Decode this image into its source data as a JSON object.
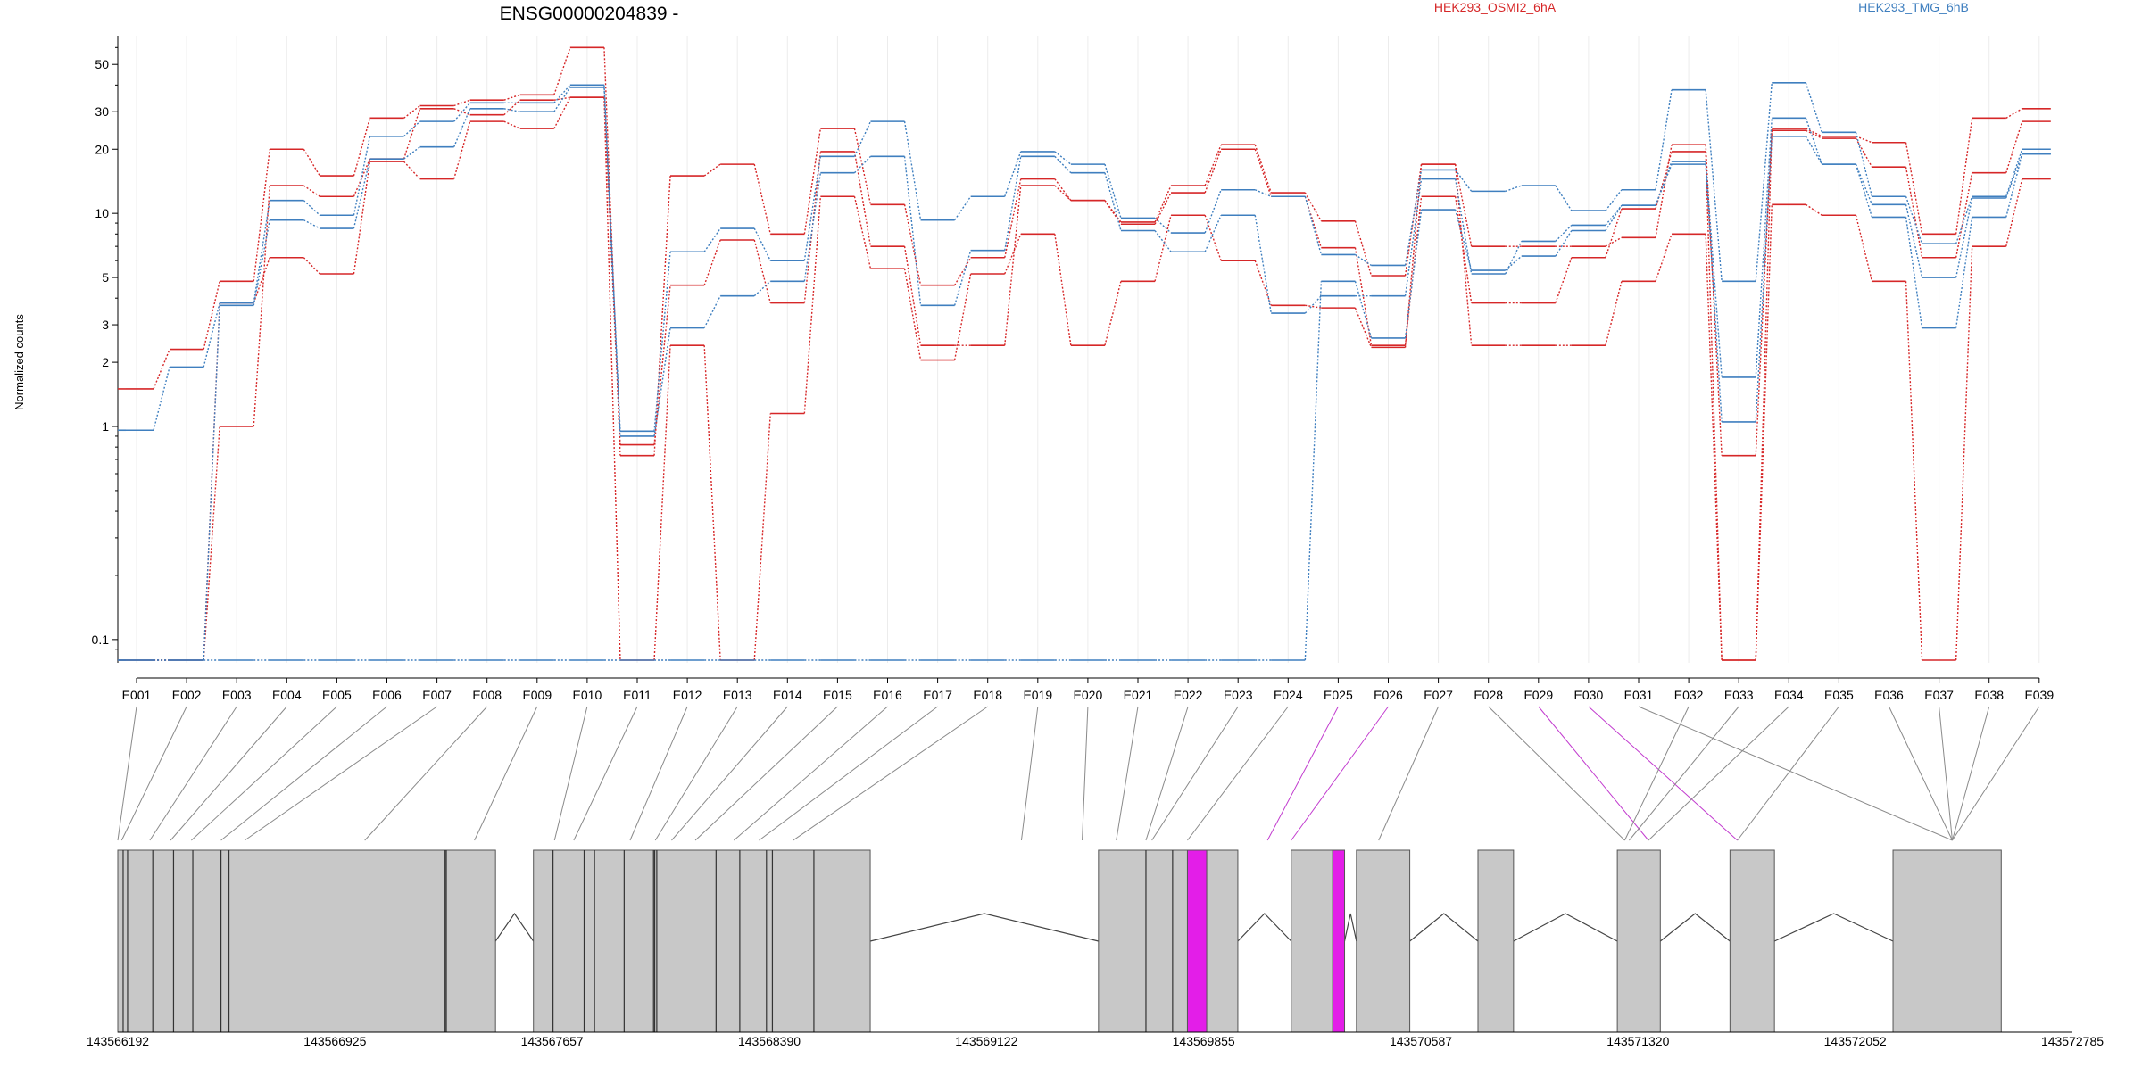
{
  "chart_data": {
    "type": "line",
    "title": "ENSG00000204839 -",
    "ylabel": "Normalized counts",
    "yscale": "log",
    "ylim": [
      0.08,
      65
    ],
    "yticks": [
      0.1,
      1,
      2,
      3,
      5,
      10,
      20,
      30,
      50
    ],
    "ytick_labels": [
      "0.1",
      "1",
      "2",
      "3",
      "5",
      "10",
      "20",
      "30",
      "50"
    ],
    "categories": [
      "E001",
      "E002",
      "E003",
      "E004",
      "E005",
      "E006",
      "E007",
      "E008",
      "E009",
      "E010",
      "E011",
      "E012",
      "E013",
      "E014",
      "E015",
      "E016",
      "E017",
      "E018",
      "E019",
      "E020",
      "E021",
      "E022",
      "E023",
      "E024",
      "E025",
      "E026",
      "E027",
      "E028",
      "E029",
      "E030",
      "E031",
      "E032",
      "E033",
      "E034",
      "E035",
      "E036",
      "E037",
      "E038",
      "E039"
    ],
    "grid": "vertical",
    "legend": [
      {
        "label": "HEK293_OSMI2_6hA",
        "color": "#d62728"
      },
      {
        "label": "HEK293_TMG_6hB",
        "color": "#3f7fbf"
      }
    ],
    "series": [
      {
        "group": "red",
        "values": [
          1.5,
          2.3,
          4.8,
          20,
          15,
          28,
          32,
          34,
          36,
          60,
          0.73,
          15,
          17,
          8,
          25,
          11,
          4.6,
          6.2,
          14.5,
          11.5,
          9.1,
          13.5,
          21,
          12.5,
          9.2,
          5.1,
          17,
          7,
          7,
          7,
          7.7,
          21,
          0.73,
          25,
          23,
          21.5,
          8,
          28,
          31
        ]
      },
      {
        "group": "red",
        "values": [
          0.08,
          0.08,
          1.0,
          13.5,
          12,
          18,
          31,
          29,
          34,
          35,
          0.82,
          4.6,
          7.5,
          3.8,
          19.5,
          7,
          2.4,
          2.4,
          13.5,
          11.5,
          8.9,
          12.5,
          20,
          12,
          6.9,
          2.4,
          12,
          3.8,
          3.8,
          6.2,
          10.5,
          19.5,
          0.08,
          24.5,
          22.5,
          16.5,
          6.2,
          15.5,
          27
        ]
      },
      {
        "group": "red",
        "values": [
          0.08,
          0.08,
          3.8,
          6.2,
          5.2,
          17.5,
          14.5,
          27,
          25,
          35,
          0.08,
          2.4,
          0.08,
          1.15,
          12,
          5.5,
          2.05,
          5.2,
          8,
          2.4,
          4.8,
          9.8,
          6,
          3.7,
          3.6,
          2.35,
          17,
          2.4,
          2.4,
          2.4,
          4.8,
          8,
          0.08,
          11,
          9.8,
          4.8,
          0.08,
          7,
          14.5
        ]
      },
      {
        "group": "blue",
        "values": [
          0.96,
          1.9,
          3.8,
          11.5,
          9.8,
          23,
          27,
          33,
          33,
          40,
          0.95,
          6.6,
          8.5,
          6,
          18.5,
          27,
          9.3,
          12,
          19.5,
          17,
          9.5,
          8.1,
          12.9,
          12,
          6.4,
          5.7,
          16,
          12.7,
          13.5,
          10.3,
          12.9,
          38,
          4.8,
          41,
          24,
          12,
          7.2,
          12,
          20
        ]
      },
      {
        "group": "blue",
        "values": [
          0.08,
          0.08,
          3.7,
          9.3,
          8.5,
          18,
          20.5,
          31,
          30,
          39,
          0.9,
          2.9,
          4.1,
          4.8,
          15.5,
          18.5,
          3.7,
          6.7,
          18.5,
          15.5,
          8.3,
          6.6,
          9.8,
          3.4,
          4.1,
          4.1,
          14.5,
          5.2,
          7.4,
          8.8,
          10.9,
          17.5,
          1.7,
          28,
          17,
          11,
          5,
          11.8,
          19
        ]
      },
      {
        "group": "blue",
        "values": [
          0.08,
          0.08,
          0.08,
          0.08,
          0.08,
          0.08,
          0.08,
          0.08,
          0.08,
          0.08,
          0.08,
          0.08,
          0.08,
          0.08,
          0.08,
          0.08,
          0.08,
          0.08,
          0.08,
          0.08,
          0.08,
          0.08,
          0.08,
          0.08,
          4.8,
          2.6,
          10.4,
          5.4,
          6.3,
          8.3,
          10.9,
          17,
          1.05,
          23,
          17,
          9.6,
          2.9,
          9.6,
          19
        ]
      }
    ],
    "genomic_track": {
      "coordinate_labels": [
        "143566192",
        "143566925",
        "143567657",
        "143568390",
        "143569122",
        "143569855",
        "143570587",
        "143571320",
        "143572052",
        "143572785"
      ],
      "range": [
        143566192,
        143572785
      ],
      "highlight_color": "#e31ee8",
      "exon_blocks": [
        [
          143566192,
          143567466,
          "#c8c8c8"
        ],
        [
          143567594,
          143568730,
          "#c8c8c8"
        ],
        [
          143569500,
          143569800,
          "#c8c8c8"
        ],
        [
          143569800,
          143569865,
          "#e31ee8"
        ],
        [
          143569865,
          143569970,
          "#c8c8c8"
        ],
        [
          143570150,
          143570290,
          "#c8c8c8"
        ],
        [
          143570290,
          143570330,
          "#e31ee8"
        ],
        [
          143570370,
          143570550,
          "#c8c8c8"
        ],
        [
          143570780,
          143570900,
          "#c8c8c8"
        ],
        [
          143571250,
          143571395,
          "#c8c8c8"
        ],
        [
          143571630,
          143571780,
          "#c8c8c8"
        ],
        [
          143572180,
          143572545,
          "#c8c8c8"
        ]
      ],
      "exon_dividers": [
        143566210,
        143566225,
        143566310,
        143566380,
        143566445,
        143566540,
        143566567,
        143567296,
        143567300,
        143567660,
        143567765,
        143567800,
        143567900,
        143567999,
        143568003,
        143568010,
        143568210,
        143568290,
        143568380,
        143568400,
        143568540,
        143569660,
        143569750
      ],
      "introns": [
        [
          143567466,
          143567594
        ],
        [
          143568730,
          143569500
        ],
        [
          143569970,
          143570150
        ],
        [
          143570330,
          143570370
        ],
        [
          143570550,
          143570780
        ],
        [
          143570900,
          143571250
        ],
        [
          143571395,
          143571630
        ],
        [
          143571780,
          143572180
        ]
      ],
      "connector_targets": [
        143566192,
        143566205,
        143566300,
        143566370,
        143566440,
        143566540,
        143566620,
        143567025,
        143567395,
        143567665,
        143567730,
        143567920,
        143568005,
        143568060,
        143568140,
        143568270,
        143568355,
        143568470,
        143569240,
        143569445,
        143569560,
        143569660,
        143569680,
        143569800,
        143570070,
        143570150,
        143570445,
        143571275,
        143571355,
        143571655,
        143572380
      ]
    }
  }
}
